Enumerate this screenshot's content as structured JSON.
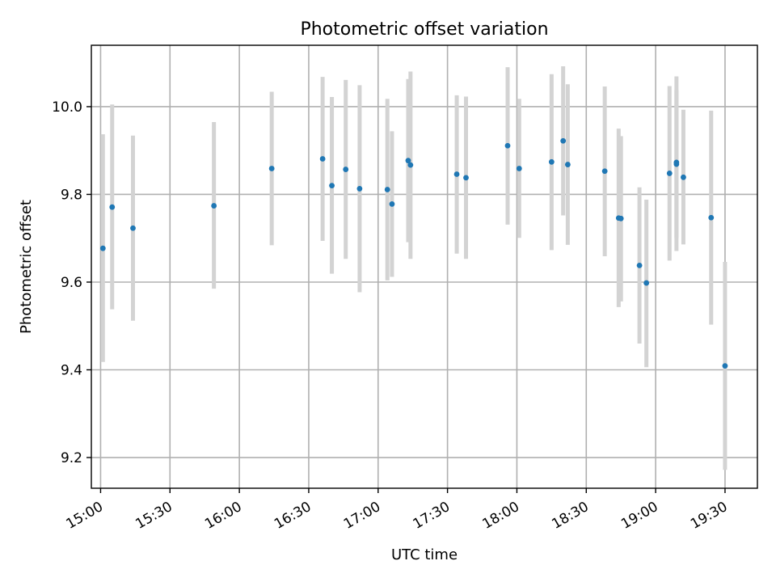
{
  "chart_data": {
    "type": "scatter",
    "title": "Photometric offset variation",
    "xlabel": "UTC time",
    "ylabel": "Photometric offset",
    "xlim": [
      "14:56",
      "19:44"
    ],
    "ylim": [
      9.13,
      10.14
    ],
    "x_ticks": [
      "15:00",
      "15:30",
      "16:00",
      "16:30",
      "17:00",
      "17:30",
      "18:00",
      "18:30",
      "19:00",
      "19:30"
    ],
    "y_ticks": [
      9.2,
      9.4,
      9.6,
      9.8,
      10.0
    ],
    "y_tick_labels": [
      "9.2",
      "9.4",
      "9.6",
      "9.8",
      "10.0"
    ],
    "grid": true,
    "colors": {
      "points": "#1f77b4",
      "errorbars": "#d3d3d3",
      "grid": "#b0b0b0"
    },
    "points": [
      {
        "t": "15:01",
        "y": 9.677,
        "lo": 9.418,
        "hi": 9.937
      },
      {
        "t": "15:05",
        "y": 9.771,
        "lo": 9.538,
        "hi": 10.005
      },
      {
        "t": "15:14",
        "y": 9.723,
        "lo": 9.512,
        "hi": 9.934
      },
      {
        "t": "15:49",
        "y": 9.774,
        "lo": 9.585,
        "hi": 9.965
      },
      {
        "t": "16:14",
        "y": 9.859,
        "lo": 9.684,
        "hi": 10.034
      },
      {
        "t": "16:36",
        "y": 9.881,
        "lo": 9.694,
        "hi": 10.068
      },
      {
        "t": "16:40",
        "y": 9.82,
        "lo": 9.619,
        "hi": 10.022
      },
      {
        "t": "16:46",
        "y": 9.857,
        "lo": 9.653,
        "hi": 10.061
      },
      {
        "t": "16:52",
        "y": 9.813,
        "lo": 9.577,
        "hi": 10.049
      },
      {
        "t": "17:04",
        "y": 9.811,
        "lo": 9.604,
        "hi": 10.018
      },
      {
        "t": "17:06",
        "y": 9.778,
        "lo": 9.612,
        "hi": 9.944
      },
      {
        "t": "17:13",
        "y": 9.877,
        "lo": 9.691,
        "hi": 10.063
      },
      {
        "t": "17:14",
        "y": 9.867,
        "lo": 9.653,
        "hi": 10.08
      },
      {
        "t": "17:34",
        "y": 9.846,
        "lo": 9.665,
        "hi": 10.026
      },
      {
        "t": "17:38",
        "y": 9.838,
        "lo": 9.653,
        "hi": 10.023
      },
      {
        "t": "17:56",
        "y": 9.911,
        "lo": 9.731,
        "hi": 10.09
      },
      {
        "t": "18:01",
        "y": 9.859,
        "lo": 9.701,
        "hi": 10.018
      },
      {
        "t": "18:15",
        "y": 9.874,
        "lo": 9.673,
        "hi": 10.074
      },
      {
        "t": "18:20",
        "y": 9.922,
        "lo": 9.752,
        "hi": 10.092
      },
      {
        "t": "18:22",
        "y": 9.868,
        "lo": 9.685,
        "hi": 10.051
      },
      {
        "t": "18:38",
        "y": 9.853,
        "lo": 9.659,
        "hi": 10.046
      },
      {
        "t": "18:44",
        "y": 9.746,
        "lo": 9.543,
        "hi": 9.95
      },
      {
        "t": "18:45",
        "y": 9.745,
        "lo": 9.556,
        "hi": 9.933
      },
      {
        "t": "18:53",
        "y": 9.638,
        "lo": 9.46,
        "hi": 9.816
      },
      {
        "t": "18:56",
        "y": 9.598,
        "lo": 9.406,
        "hi": 9.788
      },
      {
        "t": "19:06",
        "y": 9.848,
        "lo": 9.649,
        "hi": 10.047
      },
      {
        "t": "19:09",
        "y": 9.873,
        "lo": 9.671,
        "hi": 10.069
      },
      {
        "t": "19:09",
        "y": 9.869,
        "lo": 9.7,
        "hi": 10.038
      },
      {
        "t": "19:12",
        "y": 9.839,
        "lo": 9.686,
        "hi": 9.993
      },
      {
        "t": "19:24",
        "y": 9.747,
        "lo": 9.503,
        "hi": 9.991
      },
      {
        "t": "19:30",
        "y": 9.409,
        "lo": 9.172,
        "hi": 9.646
      }
    ]
  }
}
